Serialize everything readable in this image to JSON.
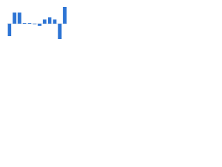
{
  "chart_data": {
    "type": "bar",
    "categories": [
      null,
      null,
      null,
      null,
      null,
      null,
      null,
      null,
      null,
      null,
      null,
      null
    ],
    "values": [
      -18,
      16,
      16,
      1,
      1,
      -1,
      -3,
      6,
      9,
      6,
      -22,
      24
    ],
    "color": "#2d74d4",
    "ylim": [
      -30,
      30
    ]
  }
}
